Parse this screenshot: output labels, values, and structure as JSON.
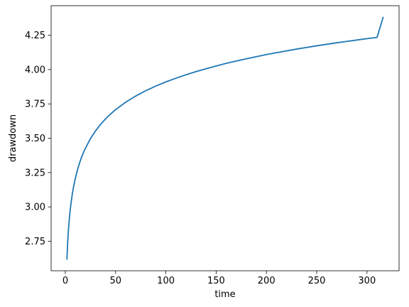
{
  "chart_data": {
    "type": "line",
    "title": "",
    "xlabel": "time",
    "ylabel": "drawdown",
    "xlim": [
      -14.1,
      331.9
    ],
    "ylim": [
      2.535,
      4.465
    ],
    "xticks": [
      0,
      50,
      100,
      150,
      200,
      250,
      300
    ],
    "xtick_labels": [
      "0",
      "50",
      "100",
      "150",
      "200",
      "250",
      "300"
    ],
    "yticks": [
      2.75,
      3.0,
      3.25,
      3.5,
      3.75,
      4.0,
      4.25
    ],
    "ytick_labels": [
      "2.75",
      "3.00",
      "3.25",
      "3.50",
      "3.75",
      "4.00",
      "4.25"
    ],
    "grid": false,
    "legend": "none",
    "series": [
      {
        "color": "#1f77b4",
        "x": [
          1.63,
          2,
          2.5,
          3,
          4,
          5,
          6,
          7,
          8,
          10,
          12,
          14,
          16,
          18,
          20,
          25,
          30,
          35,
          40,
          45,
          50,
          60,
          70,
          80,
          90,
          100,
          110,
          120,
          130,
          140,
          150,
          160,
          170,
          180,
          190,
          200,
          210,
          220,
          230,
          240,
          250,
          260,
          270,
          280,
          290,
          300,
          310,
          316
        ],
        "y": [
          2.62,
          2.687,
          2.759,
          2.819,
          2.913,
          2.986,
          3.045,
          3.095,
          3.138,
          3.209,
          3.267,
          3.316,
          3.358,
          3.395,
          3.427,
          3.497,
          3.553,
          3.6,
          3.641,
          3.676,
          3.708,
          3.762,
          3.807,
          3.846,
          3.88,
          3.91,
          3.937,
          3.962,
          3.985,
          4.006,
          4.026,
          4.045,
          4.062,
          4.078,
          4.094,
          4.109,
          4.123,
          4.136,
          4.149,
          4.161,
          4.173,
          4.184,
          4.195,
          4.205,
          4.215,
          4.225,
          4.234,
          4.379
        ]
      }
    ]
  }
}
